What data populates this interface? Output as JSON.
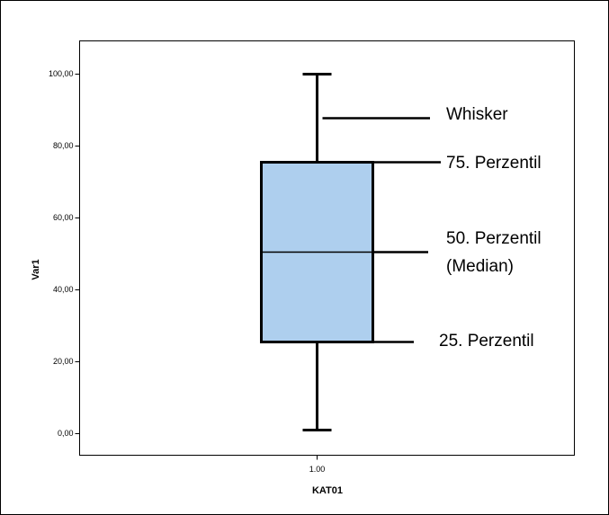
{
  "chart_data": {
    "type": "box",
    "y_label": "Var1",
    "x_label": "KAT01",
    "categories": [
      "1.00"
    ],
    "boxes": [
      {
        "min": 1,
        "q1": 25.5,
        "median": 50.5,
        "q3": 75.5,
        "max": 100
      }
    ],
    "color": "#aecfee",
    "ylim": [
      -6,
      109.25
    ],
    "yticks": [
      {
        "value": 0,
        "label": "0,00"
      },
      {
        "value": 20,
        "label": "20,00"
      },
      {
        "value": 40,
        "label": "40,00"
      },
      {
        "value": 60,
        "label": "60,00"
      },
      {
        "value": 80,
        "label": "80,00"
      },
      {
        "value": 100,
        "label": "100,00"
      }
    ],
    "annotations": [
      "Whisker",
      "75. Perzentil",
      "50. Perzentil",
      "(Median)",
      "25. Perzentil"
    ]
  }
}
